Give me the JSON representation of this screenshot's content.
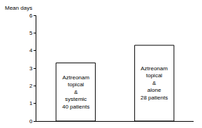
{
  "chart_data": {
    "type": "bar",
    "ylabel": "Mean days",
    "categories": [
      "Aztreonam\ntopical\n&\nsystemic\n40 patients",
      "Aztreonam\ntopical\n&\nalone\n28 patients"
    ],
    "values": [
      3.3,
      4.3
    ],
    "color": "#ffffff",
    "ylim": [
      0,
      6
    ],
    "yticks": [
      0,
      1,
      2,
      3,
      4,
      5,
      6
    ],
    "grid": false,
    "tick_labels": "y"
  }
}
